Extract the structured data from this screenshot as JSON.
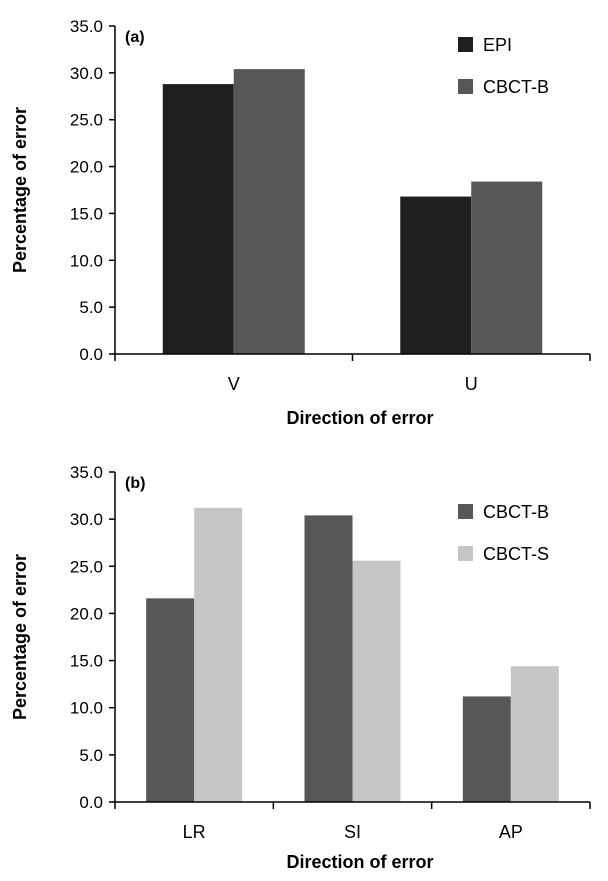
{
  "chart_data": [
    {
      "type": "bar",
      "panel_label": "(a)",
      "categories": [
        "V",
        "U"
      ],
      "series": [
        {
          "name": "EPI",
          "color": "#1f1f1f",
          "values": [
            28.8,
            16.8
          ]
        },
        {
          "name": "CBCT-B",
          "color": "#575757",
          "values": [
            30.4,
            18.4
          ]
        }
      ],
      "xlabel": "Direction of error",
      "ylabel": "Percentage of error",
      "ylim": [
        0,
        35
      ],
      "yticks": [
        "0.0",
        "5.0",
        "10.0",
        "15.0",
        "20.0",
        "25.0",
        "30.0",
        "35.0"
      ],
      "grid": false,
      "legend_position": "top-right"
    },
    {
      "type": "bar",
      "panel_label": "(b)",
      "categories": [
        "LR",
        "SI",
        "AP"
      ],
      "series": [
        {
          "name": "CBCT-B",
          "color": "#575757",
          "values": [
            21.6,
            30.4,
            11.2
          ]
        },
        {
          "name": "CBCT-S",
          "color": "#c6c6c6",
          "values": [
            31.2,
            25.6,
            14.4
          ]
        }
      ],
      "xlabel": "Direction of error",
      "ylabel": "Percentage of error",
      "ylim": [
        0,
        35
      ],
      "yticks": [
        "0.0",
        "5.0",
        "10.0",
        "15.0",
        "20.0",
        "25.0",
        "30.0",
        "35.0"
      ],
      "grid": false,
      "legend_position": "top-right"
    }
  ]
}
